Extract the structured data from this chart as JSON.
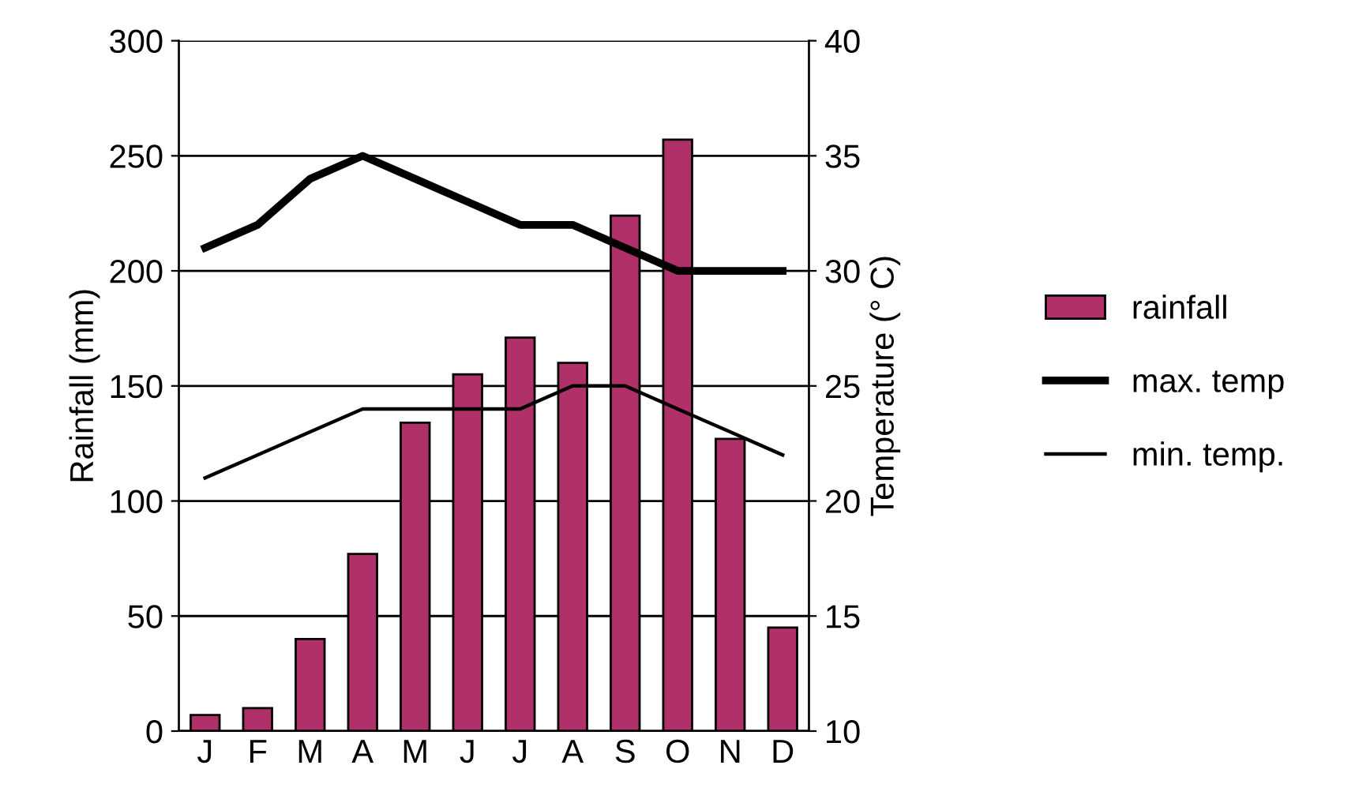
{
  "chart_data": {
    "type": "bar",
    "xlabel": null,
    "ylabel": "Rainfall (mm)",
    "y2label": "Temperature (° C)",
    "categories": [
      "J",
      "F",
      "M",
      "A",
      "M",
      "J",
      "J",
      "A",
      "S",
      "O",
      "N",
      "D"
    ],
    "series": [
      {
        "name": "rainfall",
        "color": "#b0306a",
        "values": [
          7,
          10,
          40,
          77,
          134,
          155,
          171,
          160,
          224,
          257,
          127,
          45
        ]
      },
      {
        "name": "max. temp",
        "type": "line",
        "axis": "y2",
        "color": "#000000",
        "values": [
          31,
          32,
          34,
          35,
          34,
          33,
          32,
          32,
          31,
          30,
          30,
          30
        ]
      },
      {
        "name": "min. temp.",
        "type": "line",
        "axis": "y2",
        "color": "#000000",
        "values": [
          21,
          22,
          23,
          24,
          24,
          24,
          24,
          25,
          25,
          24,
          23,
          22
        ]
      }
    ],
    "ylim": [
      0,
      300
    ],
    "yticks": [
      0,
      50,
      100,
      150,
      200,
      250,
      300
    ],
    "y2lim": [
      10,
      40
    ],
    "y2ticks": [
      10,
      15,
      20,
      25,
      30,
      35,
      40
    ],
    "grid": "y",
    "legend": "right"
  }
}
